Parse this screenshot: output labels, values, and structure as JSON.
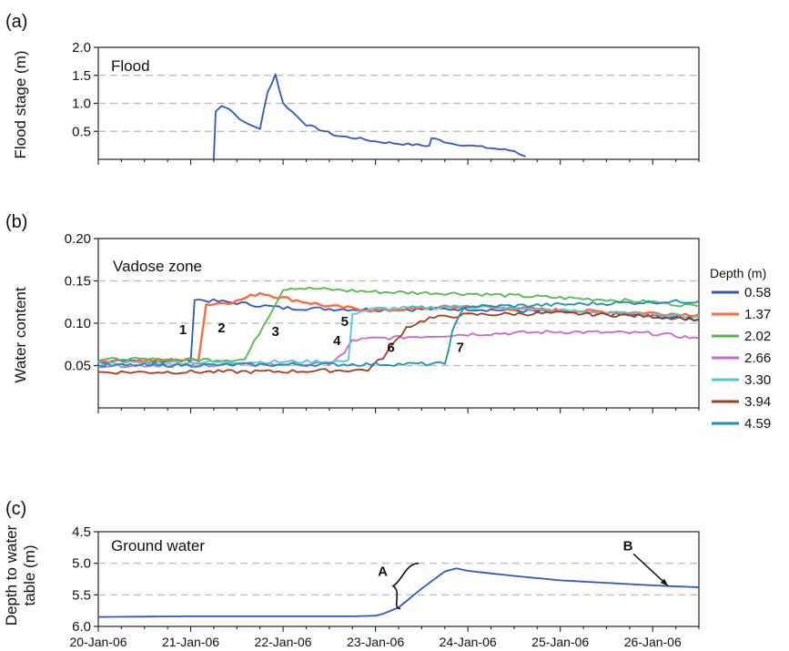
{
  "chart_data": [
    {
      "panel_label": "(a)",
      "type": "line",
      "annotation": "Flood",
      "ylabel": "Flood stage (m)",
      "ylim": [
        0,
        2.0
      ],
      "yticks": [
        "0.5",
        "1.0",
        "1.5",
        "2.0"
      ],
      "ytick_values": [
        0.5,
        1.0,
        1.5,
        2.0
      ],
      "xlim": [
        "20-Jan-06",
        "26-Jan-06 12:00"
      ],
      "grid": "dashed horizontal",
      "series": [
        {
          "color": "#2f56c6",
          "x": [
            "21-Jan-06 06:00",
            "21-Jan-06 06:30",
            "21-Jan-06 08:00",
            "21-Jan-06 10:00",
            "21-Jan-06 14:00",
            "21-Jan-06 18:00",
            "21-Jan-06 20:00",
            "21-Jan-06 22:00",
            "22-Jan-06 00:00",
            "22-Jan-06 06:00",
            "22-Jan-06 14:00",
            "22-Jan-06 20:00",
            "23-Jan-06 00:00",
            "23-Jan-06 06:00",
            "23-Jan-06 12:00",
            "23-Jan-06 14:00",
            "23-Jan-06 14:30",
            "23-Jan-06 20:00",
            "24-Jan-06 00:00",
            "24-Jan-06 06:00",
            "24-Jan-06 12:00",
            "24-Jan-06 15:00"
          ],
          "y": [
            0.0,
            0.85,
            0.97,
            0.9,
            0.65,
            0.55,
            1.2,
            1.52,
            1.0,
            0.62,
            0.42,
            0.37,
            0.32,
            0.28,
            0.25,
            0.24,
            0.38,
            0.28,
            0.25,
            0.2,
            0.15,
            0.05
          ]
        }
      ]
    },
    {
      "panel_label": "(b)",
      "type": "line",
      "annotation": "Vadose zone",
      "ylabel": "Water content",
      "ylim": [
        0.0,
        0.2
      ],
      "yticks": [
        "0.05",
        "0.10",
        "0.15",
        "0.20"
      ],
      "ytick_values": [
        0.05,
        0.1,
        0.15,
        0.2
      ],
      "xlim": [
        "20-Jan-06",
        "26-Jan-06 12:00"
      ],
      "grid": "dashed horizontal",
      "legend_title": "Depth (m)",
      "legend_position": "right",
      "series": [
        {
          "name": "0.58",
          "color": "#2f56c6",
          "curve_label": "1",
          "x": [
            "20-Jan-06",
            "21-Jan-06 00:00",
            "21-Jan-06 01:00",
            "21-Jan-06 12:00",
            "22-Jan-06 00:00",
            "23-Jan-06 00:00",
            "24-Jan-06 00:00",
            "25-Jan-06 00:00",
            "26-Jan-06 00:00",
            "26-Jan-06 12:00"
          ],
          "y": [
            0.054,
            0.056,
            0.128,
            0.124,
            0.118,
            0.116,
            0.117,
            0.113,
            0.108,
            0.104
          ]
        },
        {
          "name": "1.37",
          "color": "#ff6a3d",
          "curve_label": "2",
          "x": [
            "20-Jan-06",
            "21-Jan-06 02:00",
            "21-Jan-06 04:00",
            "21-Jan-06 12:00",
            "21-Jan-06 18:00",
            "22-Jan-06 00:00",
            "22-Jan-06 12:00",
            "23-Jan-06 00:00",
            "24-Jan-06 00:00",
            "25-Jan-06 00:00",
            "26-Jan-06 00:00",
            "26-Jan-06 12:00"
          ],
          "y": [
            0.055,
            0.057,
            0.122,
            0.126,
            0.136,
            0.13,
            0.12,
            0.115,
            0.12,
            0.115,
            0.112,
            0.11
          ]
        },
        {
          "name": "2.02",
          "color": "#53b94a",
          "curve_label": "3",
          "x": [
            "20-Jan-06",
            "21-Jan-06 14:00",
            "22-Jan-06 00:00",
            "22-Jan-06 02:00",
            "23-Jan-06 00:00",
            "24-Jan-06 00:00",
            "25-Jan-06 00:00",
            "25-Jan-06 12:00",
            "26-Jan-06 00:00",
            "26-Jan-06 12:00"
          ],
          "y": [
            0.057,
            0.057,
            0.14,
            0.142,
            0.137,
            0.135,
            0.13,
            0.128,
            0.125,
            0.12
          ]
        },
        {
          "name": "2.66",
          "color": "#cc66cc",
          "curve_label": "4",
          "x": [
            "20-Jan-06",
            "22-Jan-06 12:00",
            "22-Jan-06 16:00",
            "22-Jan-06 18:00",
            "23-Jan-06 00:00",
            "24-Jan-06 00:00",
            "25-Jan-06 00:00",
            "26-Jan-06 00:00",
            "26-Jan-06 12:00"
          ],
          "y": [
            0.05,
            0.052,
            0.065,
            0.08,
            0.082,
            0.087,
            0.09,
            0.088,
            0.082
          ]
        },
        {
          "name": "3.30",
          "color": "#4fc8d6",
          "curve_label": "5",
          "x": [
            "20-Jan-06",
            "22-Jan-06 17:00",
            "22-Jan-06 18:00",
            "23-Jan-06 00:00",
            "24-Jan-06 00:00",
            "25-Jan-06 00:00",
            "26-Jan-06 00:00",
            "26-Jan-06 12:00"
          ],
          "y": [
            0.053,
            0.055,
            0.112,
            0.117,
            0.12,
            0.115,
            0.11,
            0.108
          ]
        },
        {
          "name": "3.94",
          "color": "#a83a1e",
          "curve_label": "6",
          "x": [
            "20-Jan-06",
            "22-Jan-06 00:00",
            "22-Jan-06 22:00",
            "23-Jan-06 02:00",
            "23-Jan-06 08:00",
            "23-Jan-06 14:00",
            "24-Jan-06 00:00",
            "25-Jan-06 00:00",
            "26-Jan-06 00:00",
            "26-Jan-06 12:00"
          ],
          "y": [
            0.042,
            0.043,
            0.045,
            0.06,
            0.095,
            0.106,
            0.11,
            0.112,
            0.108,
            0.105
          ]
        },
        {
          "name": "4.59",
          "color": "#1e8fb4",
          "curve_label": "7",
          "x": [
            "20-Jan-06",
            "23-Jan-06 18:00",
            "23-Jan-06 20:00",
            "23-Jan-06 23:00",
            "24-Jan-06 06:00",
            "25-Jan-06 00:00",
            "26-Jan-06 00:00",
            "26-Jan-06 12:00"
          ],
          "y": [
            0.05,
            0.052,
            0.09,
            0.12,
            0.12,
            0.122,
            0.125,
            0.126
          ]
        }
      ]
    },
    {
      "panel_label": "(c)",
      "type": "line",
      "annotation": "Ground water",
      "ylabel": "Depth to water table (m)",
      "ylabel_lines": [
        "Depth to water",
        "table (m)"
      ],
      "ylim": [
        6.0,
        4.5
      ],
      "yaxis": "inverted",
      "yticks": [
        "4.5",
        "5.0",
        "5.5",
        "6.0"
      ],
      "ytick_values": [
        4.5,
        5.0,
        5.5,
        6.0
      ],
      "xlim": [
        "20-Jan-06",
        "26-Jan-06 12:00"
      ],
      "xticks": [
        "20-Jan-06",
        "21-Jan-06",
        "22-Jan-06",
        "23-Jan-06",
        "24-Jan-06",
        "25-Jan-06",
        "26-Jan-06"
      ],
      "grid": "dashed horizontal",
      "marker_labels": [
        "A",
        "B"
      ],
      "series": [
        {
          "color": "#2f56c6",
          "x": [
            "20-Jan-06",
            "21-Jan-06",
            "22-Jan-06",
            "22-Jan-06 18:00",
            "23-Jan-06",
            "23-Jan-06 02:00",
            "23-Jan-06 06:00",
            "23-Jan-06 12:00",
            "23-Jan-06 18:00",
            "23-Jan-06 21:00",
            "24-Jan-06",
            "24-Jan-06 12:00",
            "25-Jan-06",
            "25-Jan-06 12:00",
            "26-Jan-06",
            "26-Jan-06 12:00"
          ],
          "y": [
            5.85,
            5.84,
            5.84,
            5.84,
            5.83,
            5.8,
            5.7,
            5.4,
            5.13,
            5.08,
            5.12,
            5.2,
            5.27,
            5.31,
            5.35,
            5.38
          ]
        }
      ]
    }
  ]
}
